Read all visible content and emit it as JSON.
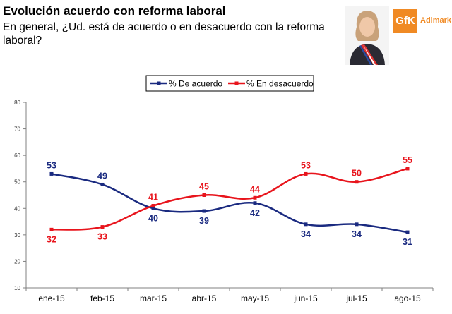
{
  "header": {
    "title": "Evolución acuerdo con reforma laboral",
    "subtitle": "En general, ¿Ud. está de acuerdo o en desacuerdo con la reforma laboral?"
  },
  "logo": {
    "mark": "GfK",
    "name": "Adimark"
  },
  "colors": {
    "acuerdo": "#1a2a80",
    "desacuerdo": "#e8141c",
    "grid": "#bdbdbd",
    "axis": "#808080"
  },
  "chart_data": {
    "type": "line",
    "title": "",
    "xlabel": "",
    "ylabel": "",
    "categories": [
      "ene-15",
      "feb-15",
      "mar-15",
      "abr-15",
      "may-15",
      "jun-15",
      "jul-15",
      "ago-15"
    ],
    "ylim": [
      10,
      80
    ],
    "yticks": [
      10,
      20,
      30,
      40,
      50,
      60,
      70,
      80
    ],
    "grid": false,
    "legend_position": "top-center",
    "series": [
      {
        "name": "% De acuerdo",
        "color": "#1a2a80",
        "values": [
          53,
          49,
          40,
          39,
          42,
          34,
          34,
          31
        ]
      },
      {
        "name": "% En desacuerdo",
        "color": "#e8141c",
        "values": [
          32,
          33,
          41,
          45,
          44,
          53,
          50,
          55
        ]
      }
    ]
  }
}
